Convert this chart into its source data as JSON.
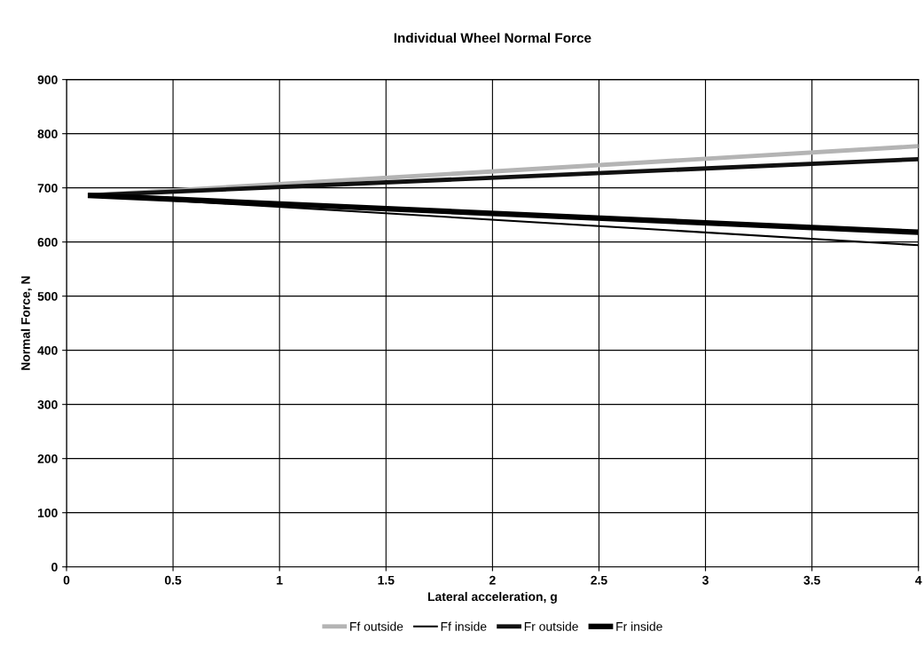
{
  "chart_data": {
    "type": "line",
    "title": "Individual Wheel Normal Force",
    "xlabel": "Lateral acceleration, g",
    "ylabel": "Normal Force, N",
    "x": [
      0.1,
      4
    ],
    "series": [
      {
        "name": "Ff outside",
        "color": "#b4b4b4",
        "values": [
          686,
          777
        ]
      },
      {
        "name": "Ff inside",
        "color": "#000000",
        "values": [
          686,
          594
        ]
      },
      {
        "name": "Fr outside",
        "color": "#111111",
        "values": [
          686,
          753
        ]
      },
      {
        "name": "Fr inside",
        "color": "#000000",
        "values": [
          686,
          618
        ]
      }
    ],
    "xlim": [
      0,
      4
    ],
    "xticks": [
      0,
      0.5,
      1,
      1.5,
      2,
      2.5,
      3,
      3.5,
      4
    ],
    "ylim": [
      0,
      900
    ],
    "yticks": [
      0,
      100,
      200,
      300,
      400,
      500,
      600,
      700,
      800,
      900
    ],
    "grid": true,
    "legend": "bottom",
    "marker": "none",
    "line_style": "solid"
  }
}
